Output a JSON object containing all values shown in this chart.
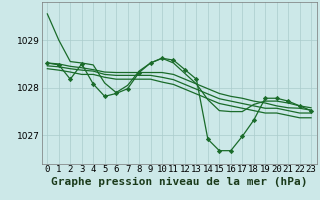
{
  "background_color": "#cce8e8",
  "grid_color": "#aacccc",
  "line_color": "#1a6b2a",
  "marker_color": "#1a6b2a",
  "title": "Graphe pression niveau de la mer (hPa)",
  "yticks": [
    1027,
    1028,
    1029
  ],
  "ylim": [
    1026.4,
    1029.8
  ],
  "xlim": [
    -0.5,
    23.5
  ],
  "series": [
    [
      1029.55,
      1029.0,
      1028.55,
      1028.52,
      1028.48,
      1028.1,
      1027.9,
      1028.05,
      1028.35,
      1028.52,
      1028.62,
      1028.52,
      1028.3,
      1028.08,
      1027.75,
      1027.52,
      1027.5,
      1027.5,
      1027.65,
      1027.72,
      1027.72,
      1027.68,
      1027.62,
      1027.58
    ],
    [
      1028.52,
      1028.5,
      1028.45,
      1028.42,
      1028.38,
      1028.33,
      1028.32,
      1028.32,
      1028.32,
      1028.32,
      1028.32,
      1028.28,
      1028.18,
      1028.08,
      1027.98,
      1027.88,
      1027.82,
      1027.78,
      1027.72,
      1027.68,
      1027.62,
      1027.58,
      1027.57,
      1027.53
    ],
    [
      1028.46,
      1028.44,
      1028.4,
      1028.37,
      1028.35,
      1028.28,
      1028.26,
      1028.26,
      1028.26,
      1028.26,
      1028.22,
      1028.17,
      1028.07,
      1027.97,
      1027.87,
      1027.77,
      1027.72,
      1027.67,
      1027.62,
      1027.57,
      1027.57,
      1027.52,
      1027.47,
      1027.47
    ],
    [
      1028.4,
      1028.37,
      1028.33,
      1028.28,
      1028.28,
      1028.22,
      1028.18,
      1028.18,
      1028.18,
      1028.18,
      1028.12,
      1028.07,
      1027.97,
      1027.87,
      1027.77,
      1027.67,
      1027.62,
      1027.57,
      1027.52,
      1027.47,
      1027.47,
      1027.42,
      1027.37,
      1027.37
    ],
    [
      1028.52,
      1028.48,
      1028.18,
      1028.5,
      1028.08,
      1027.82,
      1027.88,
      1027.98,
      1028.32,
      1028.52,
      1028.62,
      1028.58,
      1028.38,
      1028.18,
      1026.92,
      1026.68,
      1026.68,
      1026.98,
      1027.32,
      1027.78,
      1027.78,
      1027.72,
      1027.62,
      1027.52
    ]
  ],
  "has_markers": [
    false,
    false,
    false,
    false,
    true
  ],
  "title_fontsize": 8,
  "tick_fontsize": 6.5
}
